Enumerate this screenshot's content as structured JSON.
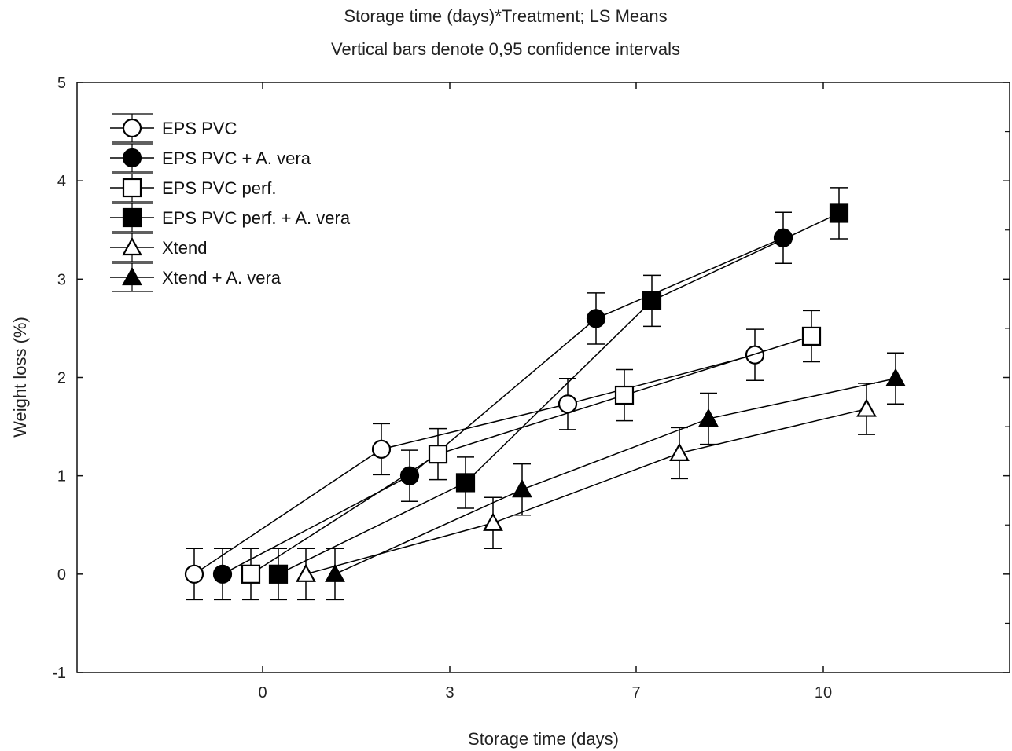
{
  "chart_data": {
    "type": "line",
    "title": "Storage time (days)*Treatment; LS Means",
    "subtitle": "Vertical bars denote 0,95 confidence intervals",
    "xlabel": "Storage time (days)",
    "ylabel": "Weight loss (%)",
    "categories": [
      "0",
      "3",
      "7",
      "10"
    ],
    "ylim": [
      -1,
      5
    ],
    "yticks": [
      -1,
      0,
      1,
      2,
      3,
      4,
      5
    ],
    "legend_position": "top-left",
    "error_bars": "0.95 confidence intervals",
    "series": [
      {
        "name": "EPS PVC",
        "marker": "circle-open",
        "values": [
          0,
          1.27,
          1.73,
          2.23
        ],
        "errors": [
          0.26,
          0.26,
          0.26,
          0.26
        ]
      },
      {
        "name": "EPS PVC + A. vera",
        "marker": "circle-filled",
        "values": [
          0,
          1.0,
          2.6,
          3.42
        ],
        "errors": [
          0.26,
          0.26,
          0.26,
          0.26
        ]
      },
      {
        "name": "EPS PVC perf.",
        "marker": "square-open",
        "values": [
          0,
          1.22,
          1.82,
          2.42
        ],
        "errors": [
          0.26,
          0.26,
          0.26,
          0.26
        ]
      },
      {
        "name": "EPS PVC perf. + A. vera",
        "marker": "square-filled",
        "values": [
          0,
          0.93,
          2.78,
          3.67
        ],
        "errors": [
          0.26,
          0.26,
          0.26,
          0.26
        ]
      },
      {
        "name": "Xtend",
        "marker": "triangle-open",
        "values": [
          0,
          0.52,
          1.23,
          1.68
        ],
        "errors": [
          0.26,
          0.26,
          0.26,
          0.26
        ]
      },
      {
        "name": "Xtend + A. vera",
        "marker": "triangle-filled",
        "values": [
          0,
          0.86,
          1.58,
          1.99
        ],
        "errors": [
          0.26,
          0.26,
          0.26,
          0.26
        ]
      }
    ]
  }
}
